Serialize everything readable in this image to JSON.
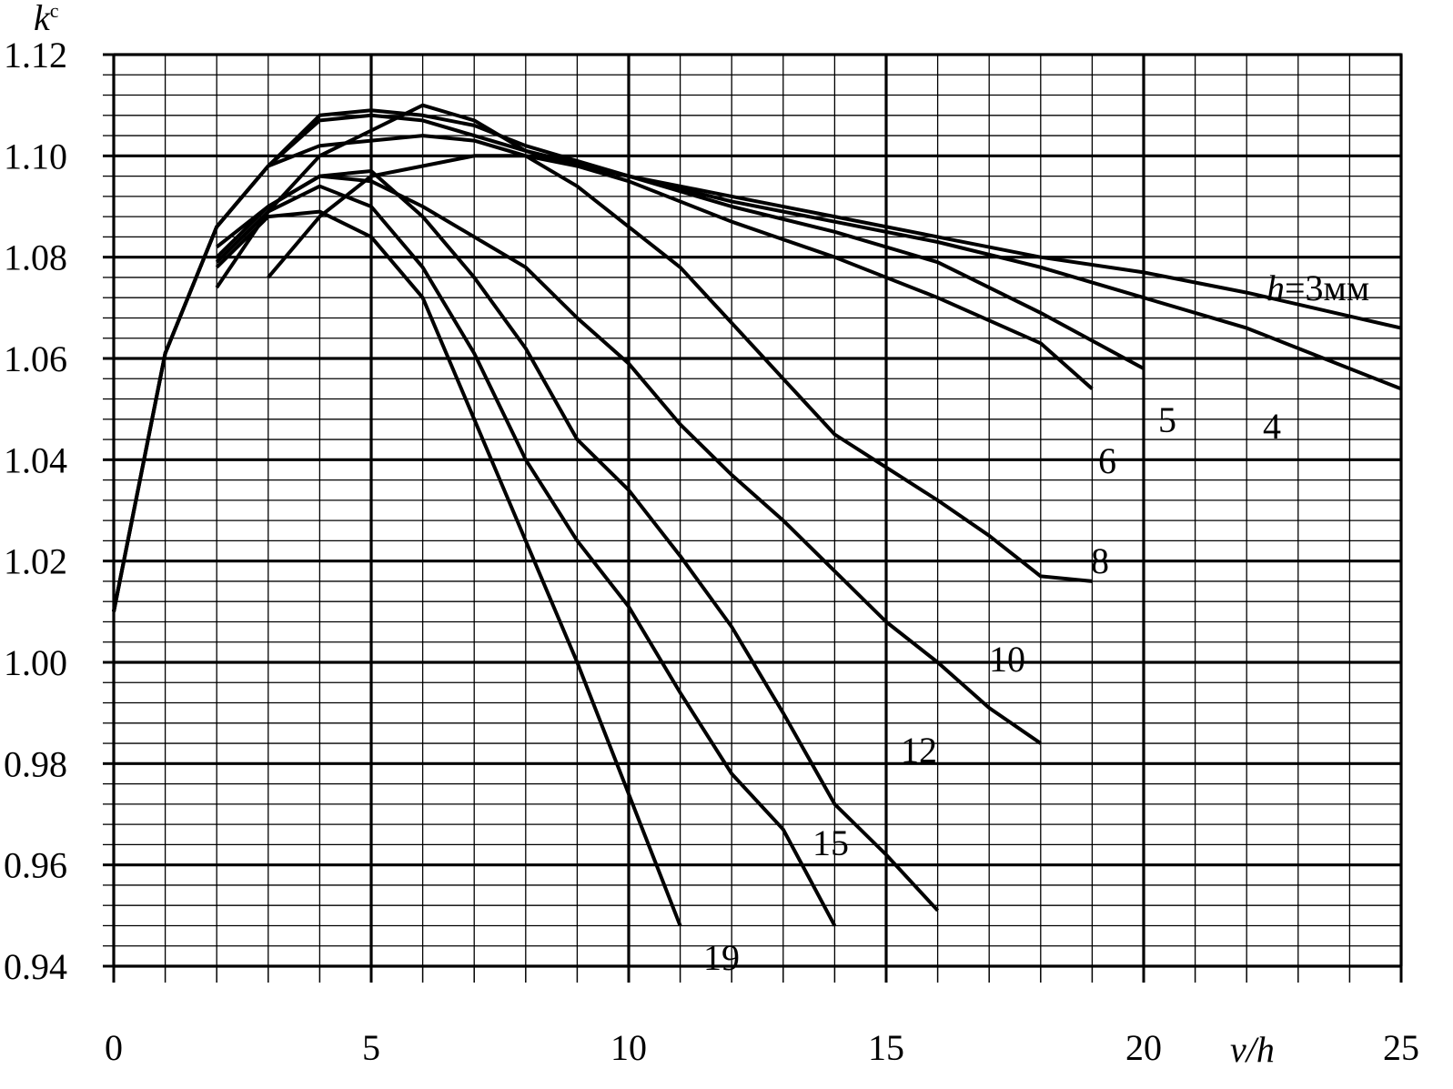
{
  "chart_data": {
    "type": "line",
    "title": "",
    "xlabel": "v/h",
    "ylabel": "k",
    "ylabel_superscript": "c",
    "xlim": [
      0,
      25
    ],
    "ylim": [
      0.94,
      1.12
    ],
    "grid": true,
    "x_ticks": [
      "0",
      "5",
      "10",
      "15",
      "20",
      "25"
    ],
    "y_ticks": [
      "0.94",
      "0.96",
      "0.98",
      "1.00",
      "1.02",
      "1.04",
      "1.06",
      "1.08",
      "1.10",
      "1.12"
    ],
    "series": [
      {
        "label_prefix": "h",
        "label": "=3мм",
        "points": [
          [
            0,
            1.01
          ],
          [
            1,
            1.061
          ],
          [
            2,
            1.086
          ],
          [
            3,
            1.098
          ],
          [
            4,
            1.102
          ],
          [
            5,
            1.103
          ],
          [
            6,
            1.104
          ],
          [
            7,
            1.103
          ],
          [
            8,
            1.1
          ],
          [
            9,
            1.098
          ],
          [
            10,
            1.096
          ],
          [
            12,
            1.092
          ],
          [
            14,
            1.088
          ],
          [
            16,
            1.084
          ],
          [
            18,
            1.08
          ],
          [
            20,
            1.077
          ],
          [
            22,
            1.073
          ],
          [
            25,
            1.066
          ]
        ]
      },
      {
        "label": "4",
        "points": [
          [
            0,
            1.01
          ],
          [
            1,
            1.061
          ],
          [
            2,
            1.086
          ],
          [
            3,
            1.098
          ],
          [
            4,
            1.107
          ],
          [
            5,
            1.108
          ],
          [
            6,
            1.107
          ],
          [
            7,
            1.104
          ],
          [
            8,
            1.101
          ],
          [
            10,
            1.096
          ],
          [
            12,
            1.091
          ],
          [
            14,
            1.087
          ],
          [
            16,
            1.083
          ],
          [
            18,
            1.078
          ],
          [
            20,
            1.072
          ],
          [
            22,
            1.066
          ],
          [
            25,
            1.054
          ]
        ]
      },
      {
        "label": "5",
        "points": [
          [
            0,
            1.01
          ],
          [
            1,
            1.061
          ],
          [
            2,
            1.086
          ],
          [
            3,
            1.098
          ],
          [
            4,
            1.108
          ],
          [
            5,
            1.109
          ],
          [
            6,
            1.108
          ],
          [
            7,
            1.106
          ],
          [
            8,
            1.102
          ],
          [
            10,
            1.096
          ],
          [
            12,
            1.09
          ],
          [
            14,
            1.085
          ],
          [
            16,
            1.079
          ],
          [
            18,
            1.069
          ],
          [
            20,
            1.058
          ]
        ]
      },
      {
        "label": "6",
        "points": [
          [
            2,
            1.074
          ],
          [
            3,
            1.089
          ],
          [
            4,
            1.1
          ],
          [
            5,
            1.105
          ],
          [
            6,
            1.11
          ],
          [
            7,
            1.107
          ],
          [
            8,
            1.101
          ],
          [
            10,
            1.095
          ],
          [
            12,
            1.087
          ],
          [
            14,
            1.08
          ],
          [
            16,
            1.072
          ],
          [
            18,
            1.063
          ],
          [
            19,
            1.054
          ]
        ]
      },
      {
        "label": "8",
        "points": [
          [
            3,
            1.076
          ],
          [
            4,
            1.088
          ],
          [
            5,
            1.096
          ],
          [
            6,
            1.098
          ],
          [
            7,
            1.1
          ],
          [
            8,
            1.1
          ],
          [
            9,
            1.094
          ],
          [
            10,
            1.086
          ],
          [
            11,
            1.078
          ],
          [
            12,
            1.067
          ],
          [
            13,
            1.056
          ],
          [
            14,
            1.045
          ],
          [
            16,
            1.032
          ],
          [
            17,
            1.025
          ],
          [
            18,
            1.017
          ],
          [
            19,
            1.016
          ]
        ]
      },
      {
        "label": "10",
        "points": [
          [
            2,
            1.082
          ],
          [
            3,
            1.09
          ],
          [
            4,
            1.096
          ],
          [
            5,
            1.095
          ],
          [
            6,
            1.09
          ],
          [
            7,
            1.084
          ],
          [
            8,
            1.078
          ],
          [
            9,
            1.068
          ],
          [
            10,
            1.059
          ],
          [
            11,
            1.047
          ],
          [
            12,
            1.037
          ],
          [
            13,
            1.028
          ],
          [
            14,
            1.018
          ],
          [
            15,
            1.008
          ],
          [
            16,
            1.0
          ],
          [
            17,
            0.991
          ],
          [
            18,
            0.984
          ]
        ]
      },
      {
        "label": "12",
        "points": [
          [
            2,
            1.08
          ],
          [
            3,
            1.09
          ],
          [
            4,
            1.096
          ],
          [
            5,
            1.097
          ],
          [
            6,
            1.088
          ],
          [
            7,
            1.076
          ],
          [
            8,
            1.062
          ],
          [
            9,
            1.044
          ],
          [
            10,
            1.034
          ],
          [
            11,
            1.021
          ],
          [
            12,
            1.007
          ],
          [
            13,
            0.99
          ],
          [
            14,
            0.972
          ],
          [
            15,
            0.962
          ],
          [
            16,
            0.951
          ]
        ]
      },
      {
        "label": "15",
        "points": [
          [
            2,
            1.079
          ],
          [
            3,
            1.089
          ],
          [
            4,
            1.094
          ],
          [
            5,
            1.09
          ],
          [
            6,
            1.078
          ],
          [
            7,
            1.061
          ],
          [
            8,
            1.04
          ],
          [
            9,
            1.024
          ],
          [
            10,
            1.011
          ],
          [
            11,
            0.994
          ],
          [
            12,
            0.978
          ],
          [
            13,
            0.967
          ],
          [
            14,
            0.948
          ]
        ]
      },
      {
        "label": "19",
        "points": [
          [
            2,
            1.078
          ],
          [
            3,
            1.088
          ],
          [
            4,
            1.089
          ],
          [
            5,
            1.084
          ],
          [
            6,
            1.072
          ],
          [
            7,
            1.048
          ],
          [
            8,
            1.024
          ],
          [
            9,
            1.0
          ],
          [
            10,
            0.974
          ],
          [
            11,
            0.948
          ]
        ]
      }
    ]
  }
}
